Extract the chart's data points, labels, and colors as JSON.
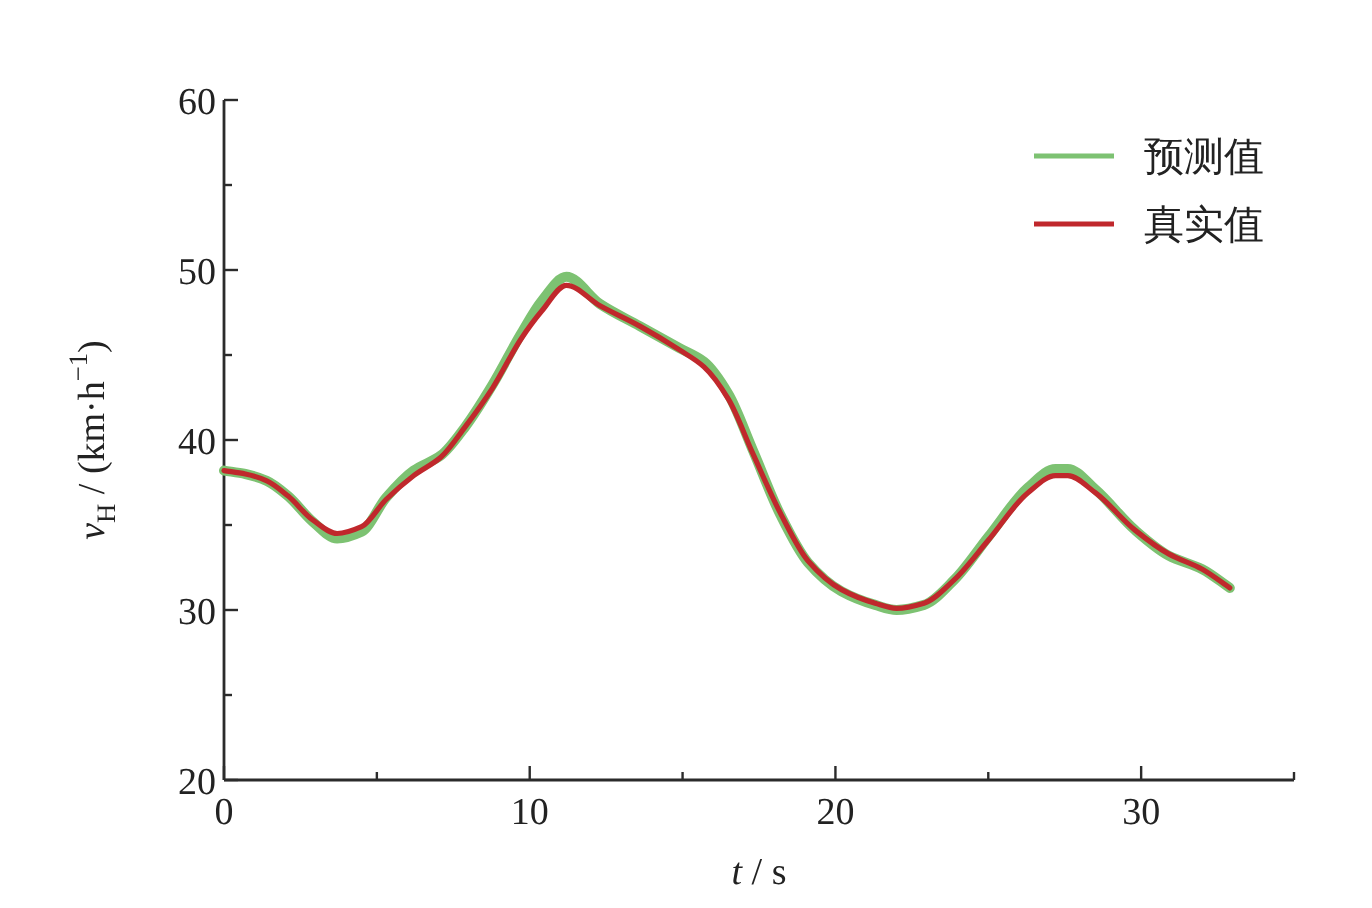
{
  "chart_data": {
    "type": "line",
    "xlabel": "*t* / s",
    "ylabel": "*v*$_{H}$ / (km·h$^{−1}$)",
    "legend": "top right",
    "xlim": [
      0,
      35
    ],
    "ylim": [
      20,
      60
    ],
    "xticks": [
      0,
      {
        "value": 5,
        "label": null
      },
      10,
      {
        "value": 15,
        "label": null
      },
      20,
      {
        "value": 25,
        "label": null
      },
      30,
      {
        "value": 35,
        "label": null
      }
    ],
    "yticks": [
      20,
      {
        "value": 25,
        "label": null
      },
      30,
      {
        "value": 35,
        "label": null
      },
      40,
      {
        "value": 45,
        "label": null
      },
      50,
      {
        "value": 55,
        "label": null
      },
      60
    ],
    "x": [
      0,
      0.7,
      1.4,
      2.1,
      2.9,
      3.7,
      4.5,
      5.3,
      6.2,
      7.1,
      7.9,
      8.8,
      9.7,
      10.4,
      11.2,
      12.3,
      13.6,
      14.9,
      15.7,
      16.5,
      17.3,
      18.2,
      19.1,
      20.2,
      21.3,
      22.0,
      22.9,
      23.9,
      25.0,
      26.3,
      27.2,
      27.6,
      28.5,
      29.8,
      30.9,
      32.0,
      32.9
    ],
    "series": [
      {
        "name": "预测值",
        "color": "#7dc272",
        "values": [
          38.2,
          38.0,
          37.6,
          36.7,
          35.2,
          34.2,
          34.6,
          36.6,
          38.2,
          39.1,
          40.8,
          43.3,
          46.2,
          48.2,
          49.6,
          48.0,
          46.7,
          45.4,
          44.6,
          42.7,
          39.4,
          35.6,
          32.8,
          31.1,
          30.3,
          30.0,
          30.3,
          31.8,
          34.3,
          37.2,
          38.3,
          38.3,
          37.1,
          34.7,
          33.2,
          32.4,
          31.3
        ]
      },
      {
        "name": "真实值",
        "color": "#c0282c",
        "values": [
          38.2,
          38.0,
          37.6,
          36.7,
          35.3,
          34.5,
          34.9,
          36.5,
          37.9,
          39.0,
          40.8,
          43.1,
          45.9,
          47.6,
          49.1,
          47.9,
          46.7,
          45.3,
          44.3,
          42.4,
          39.2,
          35.7,
          32.9,
          31.2,
          30.4,
          30.1,
          30.4,
          31.8,
          34.1,
          36.9,
          37.9,
          37.9,
          36.9,
          34.7,
          33.3,
          32.4,
          31.3
        ]
      }
    ]
  }
}
